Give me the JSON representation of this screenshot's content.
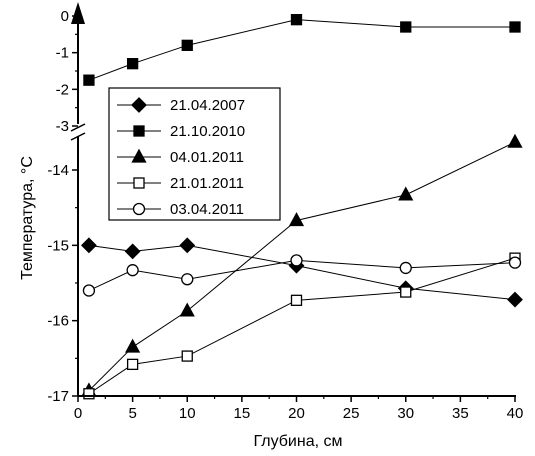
{
  "chart_data": {
    "type": "line",
    "title": "",
    "xlabel": "Глубина, см",
    "ylabel": "Температура, °С",
    "xlim": [
      0,
      40
    ],
    "x_ticks": [
      0,
      5,
      10,
      15,
      20,
      25,
      30,
      35,
      40
    ],
    "broken_y_axis": true,
    "y_segments": [
      {
        "range": [
          -3,
          0
        ],
        "ticks": [
          0,
          -1,
          -2,
          -3
        ]
      },
      {
        "range": [
          -17,
          -13.6
        ],
        "ticks": [
          -14,
          -15,
          -16,
          -17
        ]
      }
    ],
    "grid": false,
    "legend_position": "top-left",
    "series": [
      {
        "name": "21.04.2007",
        "marker": "filled-diamond",
        "x": [
          1,
          5,
          10,
          20,
          30,
          40
        ],
        "y": [
          -15.0,
          -15.08,
          -15.0,
          -15.27,
          -15.57,
          -15.72
        ]
      },
      {
        "name": "21.10.2010",
        "marker": "filled-square",
        "x": [
          1,
          5,
          10,
          20,
          30,
          40
        ],
        "y": [
          -1.75,
          -1.3,
          -0.8,
          -0.1,
          -0.3,
          -0.3
        ]
      },
      {
        "name": "04.01.2011",
        "marker": "filled-triangle",
        "x": [
          1,
          5,
          10,
          20,
          30,
          40
        ],
        "y": [
          -16.93,
          -16.35,
          -15.87,
          -14.67,
          -14.33,
          -13.63
        ]
      },
      {
        "name": "21.01.2011",
        "marker": "open-square",
        "x": [
          1,
          5,
          10,
          20,
          30,
          40
        ],
        "y": [
          -16.97,
          -16.58,
          -16.47,
          -15.73,
          -15.62,
          -15.17
        ]
      },
      {
        "name": "03.04.2011",
        "marker": "open-circle",
        "x": [
          1,
          5,
          10,
          20,
          30,
          40
        ],
        "y": [
          -15.6,
          -15.33,
          -15.45,
          -15.2,
          -15.3,
          -15.23
        ]
      }
    ]
  }
}
